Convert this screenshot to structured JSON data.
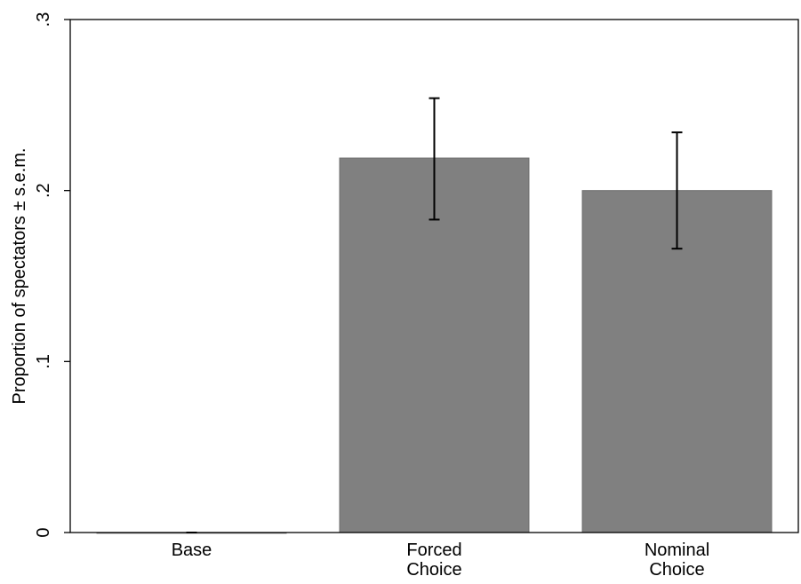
{
  "chart_data": {
    "type": "bar",
    "title": "",
    "xlabel": "",
    "ylabel": "Proportion of spectators ± s.e.m.",
    "categories": [
      [
        "Base"
      ],
      [
        "Forced",
        "Choice"
      ],
      [
        "Nominal",
        "Choice"
      ]
    ],
    "values": [
      0.0,
      0.219,
      0.2
    ],
    "error_low": [
      0.0,
      0.183,
      0.166
    ],
    "error_high": [
      0.0,
      0.254,
      0.234
    ],
    "ylim": [
      0,
      0.3
    ],
    "yticks": [
      0,
      0.1,
      0.2,
      0.3
    ],
    "ytick_labels": [
      "0",
      ".1",
      ".2",
      ".3"
    ],
    "bar_color": "#808080",
    "bar_edge_color": "#6e6e6e",
    "grid": false,
    "legend": "none"
  }
}
